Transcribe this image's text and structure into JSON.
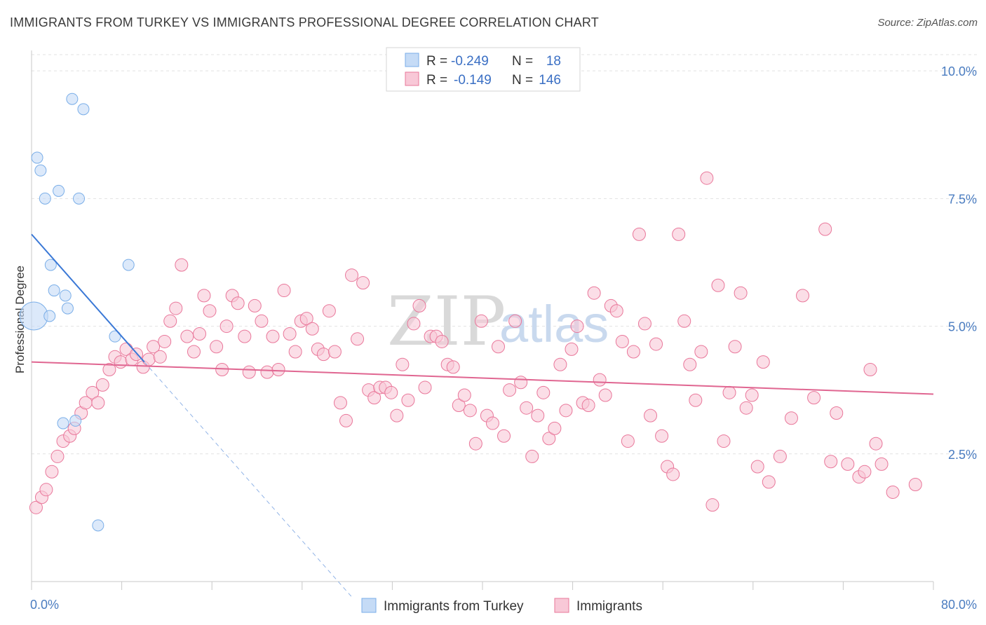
{
  "title": "IMMIGRANTS FROM TURKEY VS IMMIGRANTS PROFESSIONAL DEGREE CORRELATION CHART",
  "source": "Source: ZipAtlas.com",
  "watermark": {
    "zip": "ZIP",
    "atlas": "atlas"
  },
  "legend_top": [
    {
      "r_label": "R =",
      "r_value": "-0.249",
      "n_label": "N =",
      "n_value": "18",
      "color": "#7aaee8"
    },
    {
      "r_label": "R =",
      "r_value": "-0.149",
      "n_label": "N =",
      "n_value": "146",
      "color": "#f2a7bf"
    }
  ],
  "legend_bottom": [
    {
      "label": "Immigrants from Turkey",
      "color": "#7aaee8"
    },
    {
      "label": "Immigrants",
      "color": "#f2a7bf"
    }
  ],
  "chart_data": {
    "type": "scatter",
    "title": "IMMIGRANTS FROM TURKEY VS IMMIGRANTS PROFESSIONAL DEGREE CORRELATION CHART",
    "xlabel": "",
    "ylabel": "Professional Degree",
    "xlim": [
      0,
      80
    ],
    "ylim": [
      0,
      10.4
    ],
    "x_tick_labels": {
      "min": "0.0%",
      "max": "80.0%"
    },
    "y_ticks": [
      2.5,
      5.0,
      7.5,
      10.0
    ],
    "y_tick_labels": [
      "2.5%",
      "5.0%",
      "7.5%",
      "10.0%"
    ],
    "grid": "horizontal dashed",
    "legend_position": "top-center",
    "series": [
      {
        "name": "Immigrants from Turkey",
        "color": "#7aaee8",
        "fill": "#c5dbf6",
        "regression": {
          "x0": 0,
          "y0": 6.8,
          "x1": 10,
          "y1": 4.3,
          "dashed_to_x": 28.5
        },
        "points": [
          [
            0.2,
            5.2,
            "big"
          ],
          [
            0.5,
            8.3
          ],
          [
            0.8,
            8.05
          ],
          [
            1.2,
            7.5
          ],
          [
            2.4,
            7.65
          ],
          [
            4.2,
            7.5
          ],
          [
            3.6,
            9.45
          ],
          [
            4.6,
            9.25
          ],
          [
            1.7,
            6.2
          ],
          [
            2.0,
            5.7
          ],
          [
            3.0,
            5.6
          ],
          [
            1.6,
            5.2
          ],
          [
            3.2,
            5.35
          ],
          [
            7.4,
            4.8
          ],
          [
            8.6,
            6.2
          ],
          [
            2.8,
            3.1
          ],
          [
            3.9,
            3.15
          ],
          [
            5.9,
            1.1
          ]
        ]
      },
      {
        "name": "Immigrants",
        "color": "#e9779a",
        "fill": "#f8c8d7",
        "regression": {
          "x0": 0,
          "y0": 4.3,
          "x1": 80,
          "y1": 3.67
        },
        "points": [
          [
            0.4,
            1.45
          ],
          [
            0.9,
            1.65
          ],
          [
            1.3,
            1.8
          ],
          [
            1.8,
            2.15
          ],
          [
            2.3,
            2.45
          ],
          [
            2.8,
            2.75
          ],
          [
            3.4,
            2.85
          ],
          [
            3.8,
            3.0
          ],
          [
            4.4,
            3.3
          ],
          [
            4.8,
            3.5
          ],
          [
            5.4,
            3.7
          ],
          [
            5.9,
            3.5
          ],
          [
            6.3,
            3.85
          ],
          [
            6.9,
            4.15
          ],
          [
            7.4,
            4.4
          ],
          [
            7.9,
            4.3
          ],
          [
            8.4,
            4.55
          ],
          [
            8.9,
            4.35
          ],
          [
            9.3,
            4.45
          ],
          [
            9.9,
            4.2
          ],
          [
            10.4,
            4.35
          ],
          [
            10.8,
            4.6
          ],
          [
            11.4,
            4.4
          ],
          [
            11.8,
            4.7
          ],
          [
            12.3,
            5.1
          ],
          [
            12.8,
            5.35
          ],
          [
            13.3,
            6.2
          ],
          [
            13.8,
            4.8
          ],
          [
            14.4,
            4.5
          ],
          [
            14.9,
            4.85
          ],
          [
            15.3,
            5.6
          ],
          [
            15.8,
            5.3
          ],
          [
            16.4,
            4.6
          ],
          [
            16.9,
            4.15
          ],
          [
            17.3,
            5.0
          ],
          [
            17.8,
            5.6
          ],
          [
            18.3,
            5.45
          ],
          [
            18.9,
            4.8
          ],
          [
            19.3,
            4.1
          ],
          [
            19.8,
            5.4
          ],
          [
            20.4,
            5.1
          ],
          [
            20.9,
            4.1
          ],
          [
            21.4,
            4.8
          ],
          [
            21.9,
            4.15
          ],
          [
            22.4,
            5.7
          ],
          [
            22.9,
            4.85
          ],
          [
            23.4,
            4.5
          ],
          [
            23.9,
            5.1
          ],
          [
            24.4,
            5.15
          ],
          [
            24.9,
            4.95
          ],
          [
            25.4,
            4.55
          ],
          [
            25.9,
            4.45
          ],
          [
            26.4,
            5.3
          ],
          [
            26.9,
            4.5
          ],
          [
            27.4,
            3.5
          ],
          [
            27.9,
            3.15
          ],
          [
            28.4,
            6.0
          ],
          [
            28.9,
            4.75
          ],
          [
            29.4,
            5.85
          ],
          [
            29.9,
            3.75
          ],
          [
            30.4,
            3.6
          ],
          [
            30.9,
            3.8
          ],
          [
            31.4,
            3.8
          ],
          [
            31.9,
            3.7
          ],
          [
            32.4,
            3.25
          ],
          [
            32.9,
            4.25
          ],
          [
            33.4,
            3.55
          ],
          [
            33.9,
            5.05
          ],
          [
            34.4,
            5.4
          ],
          [
            34.9,
            3.8
          ],
          [
            35.4,
            4.8
          ],
          [
            35.9,
            4.8
          ],
          [
            36.4,
            4.7
          ],
          [
            36.9,
            4.25
          ],
          [
            37.4,
            4.2
          ],
          [
            37.9,
            3.45
          ],
          [
            38.4,
            3.65
          ],
          [
            38.9,
            3.35
          ],
          [
            39.4,
            2.7
          ],
          [
            39.9,
            5.1
          ],
          [
            40.4,
            3.25
          ],
          [
            40.9,
            3.1
          ],
          [
            41.4,
            4.6
          ],
          [
            41.9,
            2.85
          ],
          [
            42.4,
            3.75
          ],
          [
            42.9,
            5.1
          ],
          [
            43.4,
            3.9
          ],
          [
            43.9,
            3.4
          ],
          [
            44.4,
            2.45
          ],
          [
            44.9,
            3.25
          ],
          [
            45.4,
            3.7
          ],
          [
            45.9,
            2.8
          ],
          [
            46.4,
            3.0
          ],
          [
            46.9,
            4.25
          ],
          [
            47.4,
            3.35
          ],
          [
            47.9,
            4.55
          ],
          [
            48.4,
            5.0
          ],
          [
            48.9,
            3.5
          ],
          [
            49.4,
            3.45
          ],
          [
            49.9,
            5.65
          ],
          [
            50.4,
            3.95
          ],
          [
            50.9,
            3.65
          ],
          [
            51.4,
            5.4
          ],
          [
            51.9,
            5.3
          ],
          [
            52.4,
            4.7
          ],
          [
            52.9,
            2.75
          ],
          [
            53.4,
            4.5
          ],
          [
            53.9,
            6.8
          ],
          [
            54.4,
            5.05
          ],
          [
            54.9,
            3.25
          ],
          [
            55.4,
            4.65
          ],
          [
            55.9,
            2.85
          ],
          [
            56.4,
            2.25
          ],
          [
            56.9,
            2.1
          ],
          [
            57.4,
            6.8
          ],
          [
            57.9,
            5.1
          ],
          [
            58.4,
            4.25
          ],
          [
            58.9,
            3.55
          ],
          [
            59.4,
            4.5
          ],
          [
            59.9,
            7.9
          ],
          [
            60.4,
            1.5
          ],
          [
            60.9,
            5.8
          ],
          [
            61.4,
            2.75
          ],
          [
            61.9,
            3.7
          ],
          [
            62.4,
            4.6
          ],
          [
            62.9,
            5.65
          ],
          [
            63.4,
            3.4
          ],
          [
            63.9,
            3.65
          ],
          [
            64.4,
            2.25
          ],
          [
            64.9,
            4.3
          ],
          [
            65.4,
            1.95
          ],
          [
            66.4,
            2.45
          ],
          [
            67.4,
            3.2
          ],
          [
            68.4,
            5.6
          ],
          [
            69.4,
            3.6
          ],
          [
            70.4,
            6.9
          ],
          [
            70.9,
            2.35
          ],
          [
            71.4,
            3.3
          ],
          [
            72.4,
            2.3
          ],
          [
            73.4,
            2.05
          ],
          [
            73.9,
            2.15
          ],
          [
            74.4,
            4.15
          ],
          [
            74.9,
            2.7
          ],
          [
            75.4,
            2.3
          ],
          [
            76.4,
            1.75
          ],
          [
            78.4,
            1.9
          ]
        ]
      }
    ]
  }
}
